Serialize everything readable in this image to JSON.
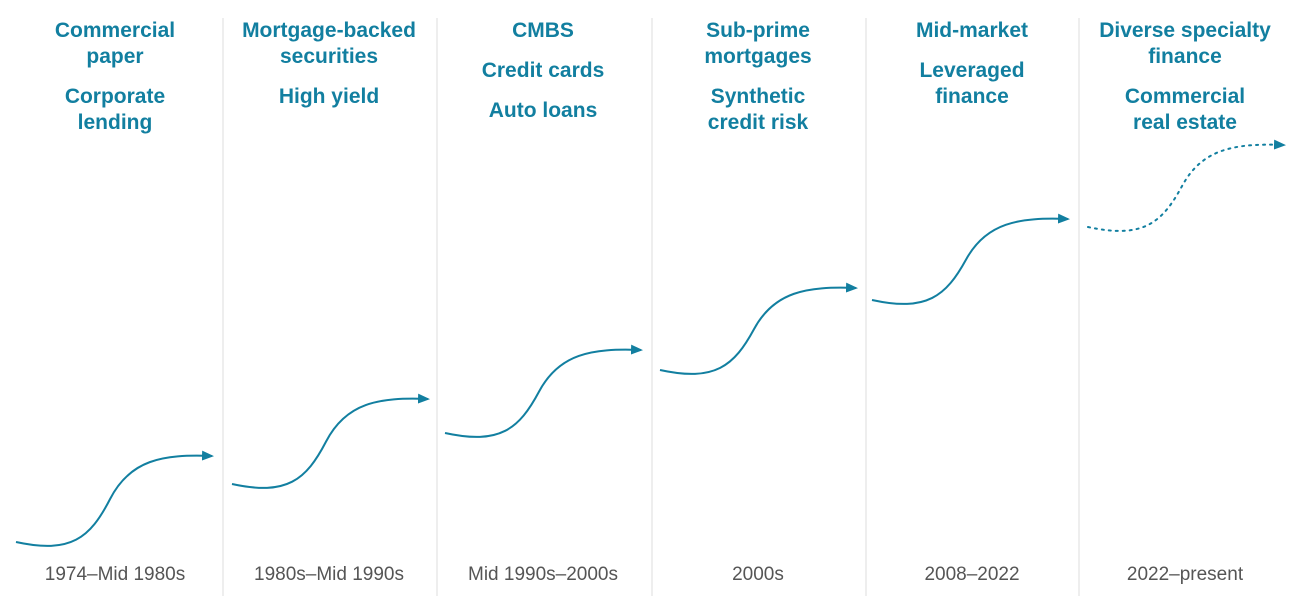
{
  "colors": {
    "accent": "#127fa0",
    "divider": "#dcdcdc",
    "period_text": "#555555"
  },
  "eras": [
    {
      "period": "1974–Mid 1980s",
      "items": [
        "Commercial\npaper",
        "Corporate\nlending"
      ],
      "arrow_style": "solid"
    },
    {
      "period": "1980s–Mid 1990s",
      "items": [
        "Mortgage-backed\nsecurities",
        "High yield"
      ],
      "arrow_style": "solid"
    },
    {
      "period": "Mid 1990s–2000s",
      "items": [
        "CMBS",
        "Credit cards",
        "Auto loans"
      ],
      "arrow_style": "solid"
    },
    {
      "period": "2000s",
      "items": [
        "Sub-prime\nmortgages",
        "Synthetic\ncredit risk"
      ],
      "arrow_style": "solid"
    },
    {
      "period": "2008–2022",
      "items": [
        "Mid-market",
        "Leveraged\nfinance"
      ],
      "arrow_style": "solid"
    },
    {
      "period": "2022–present",
      "items": [
        "Diverse specialty\nfinance",
        "Commercial\nreal estate"
      ],
      "arrow_style": "dotted"
    }
  ]
}
